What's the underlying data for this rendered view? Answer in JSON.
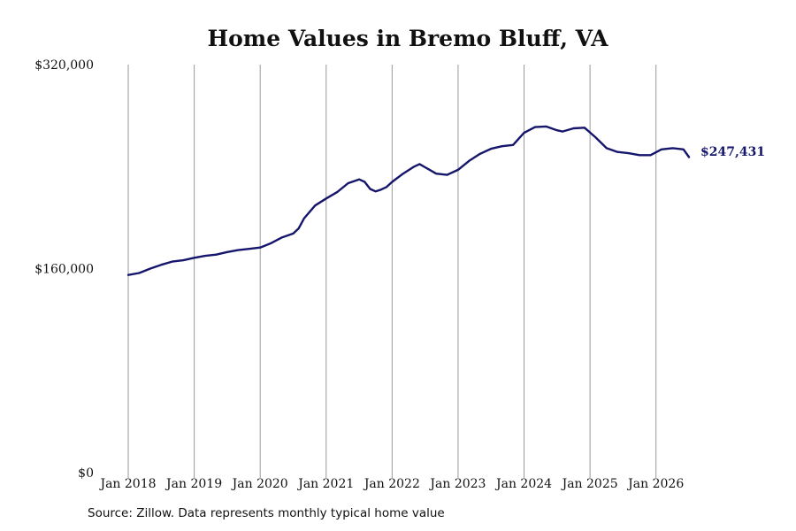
{
  "chart_data": {
    "type": "line",
    "title": "Home Values in Bremo Bluff, VA",
    "xlabel": "",
    "ylabel": "",
    "ylim": [
      0,
      320000
    ],
    "xlim": [
      "2018-01",
      "2026-07"
    ],
    "y_ticks": [
      "$0",
      "$160,000",
      "$320,000"
    ],
    "x_ticks": [
      "Jan 2018",
      "Jan 2019",
      "Jan 2020",
      "Jan 2021",
      "Jan 2022",
      "Jan 2023",
      "Jan 2024",
      "Jan 2025",
      "Jan 2026"
    ],
    "grid": "vertical",
    "legend": "none",
    "line_color": "#15166b",
    "end_label": "$247,431",
    "series": [
      {
        "x": [
          "2018-01",
          "2018-03",
          "2018-05",
          "2018-07",
          "2018-09",
          "2018-11",
          "2019-01",
          "2019-03",
          "2019-05",
          "2019-07",
          "2019-09",
          "2019-11",
          "2020-01",
          "2020-03",
          "2020-05",
          "2020-07",
          "2020-08",
          "2020-09",
          "2020-11",
          "2021-01",
          "2021-03",
          "2021-05",
          "2021-07",
          "2021-08",
          "2021-09",
          "2021-10",
          "2021-11",
          "2021-12",
          "2022-01",
          "2022-03",
          "2022-05",
          "2022-06",
          "2022-07",
          "2022-08",
          "2022-09",
          "2022-11",
          "2023-01",
          "2023-03",
          "2023-05",
          "2023-07",
          "2023-09",
          "2023-11",
          "2024-01",
          "2024-03",
          "2024-05",
          "2024-07",
          "2024-08",
          "2024-10",
          "2024-12",
          "2025-02",
          "2025-04",
          "2025-06",
          "2025-08",
          "2025-10",
          "2025-12",
          "2026-02",
          "2026-04",
          "2026-06",
          "2026-07"
        ],
        "values": [
          155000,
          156500,
          160000,
          163000,
          165500,
          166500,
          168500,
          170000,
          171000,
          173000,
          174500,
          175500,
          176500,
          180000,
          184500,
          187500,
          191500,
          199500,
          209500,
          215000,
          220000,
          227000,
          230000,
          228000,
          222500,
          220500,
          222000,
          224000,
          228000,
          234500,
          240000,
          242000,
          239500,
          237000,
          234500,
          233500,
          237500,
          244500,
          250000,
          254000,
          256000,
          257000,
          266500,
          271000,
          271500,
          268500,
          267500,
          270000,
          270500,
          263000,
          254500,
          251500,
          250500,
          249000,
          249000,
          253500,
          254500,
          253500,
          247431
        ]
      }
    ]
  },
  "footer": {
    "source": "Source: Zillow. Data represents monthly typical home value"
  }
}
